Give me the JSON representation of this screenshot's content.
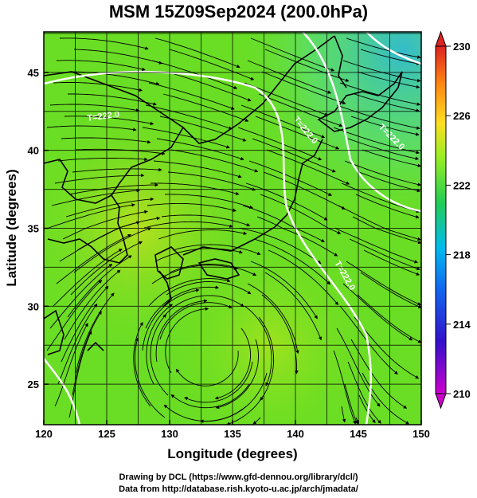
{
  "title": "MSM 15Z09Sep2024 (200.0hPa)",
  "xaxis": {
    "label": "Longitude (degrees)",
    "ticks": [
      "120",
      "125",
      "130",
      "135",
      "140",
      "145",
      "150"
    ],
    "range": [
      120,
      150
    ]
  },
  "yaxis": {
    "label": "Latitude  (degrees)",
    "ticks": [
      "25",
      "30",
      "35",
      "40",
      "45"
    ],
    "range": [
      22.4,
      47.6
    ]
  },
  "colorbar": {
    "ticks": [
      "230",
      "226",
      "222",
      "218",
      "214",
      "210"
    ],
    "range": [
      210,
      230
    ],
    "colors": [
      "#cc00cc",
      "#2222dd",
      "#00aaee",
      "#22cc55",
      "#99ee22",
      "#ffcc22",
      "#ff6611",
      "#dd2222"
    ]
  },
  "contours": {
    "label": "T=222.0",
    "color": "#ffffff"
  },
  "field": {
    "dominant_color": "#66dd22",
    "cold_color": "#22ccaa",
    "warm_color": "#aadd22"
  },
  "credits": {
    "line1": "Drawing by DCL (https://www.gfd-dennou.org/library/dcl/)",
    "line2": "Data from http://database.rish.kyoto-u.ac.jp/arch/jmadata/"
  }
}
